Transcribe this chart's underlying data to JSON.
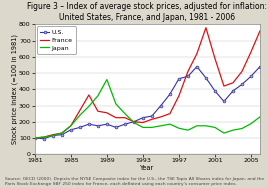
{
  "title": "Figure 3 – Index of average stock prices, adjusted for inflation:\nUnited States, France, and Japan, 1981 - 2006",
  "xlabel": "Year",
  "ylabel": "Stock price index (=100 in 1981)",
  "ylim": [
    0,
    800
  ],
  "yticks": [
    0,
    100,
    200,
    300,
    400,
    500,
    600,
    700,
    800
  ],
  "xticks": [
    1981,
    1985,
    1989,
    1993,
    1997,
    2001,
    2005
  ],
  "background_color": "#ddd8cc",
  "plot_bg": "#ffffff",
  "us": {
    "years": [
      1981,
      1982,
      1983,
      1984,
      1985,
      1986,
      1987,
      1988,
      1989,
      1990,
      1991,
      1992,
      1993,
      1994,
      1995,
      1996,
      1997,
      1998,
      1999,
      2000,
      2001,
      2002,
      2003,
      2004,
      2005,
      2006
    ],
    "values": [
      100,
      95,
      115,
      120,
      150,
      165,
      185,
      175,
      185,
      165,
      185,
      200,
      225,
      235,
      300,
      370,
      465,
      480,
      540,
      470,
      390,
      325,
      390,
      430,
      480,
      540
    ],
    "color": "#3333aa",
    "marker": "o",
    "label": "U.S."
  },
  "france": {
    "years": [
      1981,
      1982,
      1983,
      1984,
      1985,
      1986,
      1987,
      1988,
      1989,
      1990,
      1991,
      1992,
      1993,
      1994,
      1995,
      1996,
      1997,
      1998,
      1999,
      2000,
      2001,
      2002,
      2003,
      2004,
      2005,
      2006
    ],
    "values": [
      100,
      105,
      120,
      130,
      175,
      270,
      365,
      265,
      255,
      225,
      225,
      200,
      195,
      215,
      230,
      250,
      360,
      510,
      620,
      780,
      590,
      420,
      440,
      510,
      630,
      760
    ],
    "color": "#dd1111",
    "marker": null,
    "label": "France"
  },
  "japan": {
    "years": [
      1981,
      1982,
      1983,
      1984,
      1985,
      1986,
      1987,
      1988,
      1989,
      1990,
      1991,
      1992,
      1993,
      1994,
      1995,
      1996,
      1997,
      1998,
      1999,
      2000,
      2001,
      2002,
      2003,
      2004,
      2005,
      2006
    ],
    "values": [
      100,
      105,
      115,
      130,
      175,
      240,
      295,
      360,
      460,
      310,
      250,
      195,
      165,
      165,
      175,
      185,
      160,
      148,
      175,
      175,
      165,
      130,
      148,
      158,
      188,
      230
    ],
    "color": "#00bb00",
    "marker": null,
    "label": "Japan"
  },
  "source_text": "Source: OECD (2000). Depicts the NYSE Composite index for the U.S., the TSE Topix All Shares index for Japan, and the\nParis Stock Exchange SBF 250 index for France, each deflated using each country's consumer price index.",
  "title_fontsize": 5.5,
  "label_fontsize": 4.8,
  "tick_fontsize": 4.5,
  "legend_fontsize": 4.5,
  "source_fontsize": 3.2
}
